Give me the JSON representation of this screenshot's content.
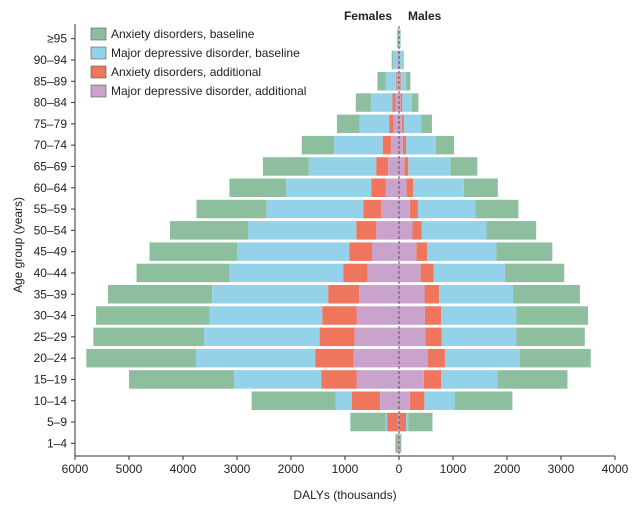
{
  "chart_data": {
    "type": "bar",
    "orientation": "horizontal-population-pyramid",
    "xlabel": "DALYs (thousands)",
    "ylabel": "Age group (years)",
    "xlim": [
      -6000,
      4000
    ],
    "x_ticks": [
      -6000,
      -5000,
      -4000,
      -3000,
      -2000,
      -1000,
      0,
      1000,
      2000,
      3000,
      4000
    ],
    "x_tick_labels": [
      "6000",
      "5000",
      "4000",
      "3000",
      "2000",
      "1000",
      "0",
      "1000",
      "2000",
      "3000",
      "4000"
    ],
    "left_group": "Females",
    "right_group": "Males",
    "legend_position": "top-left",
    "categories": [
      "≥95",
      "90–94",
      "85–89",
      "80–84",
      "75–79",
      "70–74",
      "65–69",
      "60–64",
      "55–59",
      "50–54",
      "45–49",
      "40–44",
      "35–39",
      "30–34",
      "25–29",
      "20–24",
      "15–19",
      "10–14",
      "5–9",
      "1–4"
    ],
    "series": [
      {
        "name": "Anxiety disorders, baseline",
        "color": "#8dbf9f",
        "females": [
          10,
          30,
          150,
          280,
          420,
          600,
          850,
          1050,
          1300,
          1450,
          1620,
          1720,
          1930,
          2100,
          2050,
          2030,
          1950,
          1560,
          650,
          50
        ],
        "males": [
          10,
          20,
          80,
          120,
          200,
          340,
          500,
          630,
          800,
          920,
          1040,
          1100,
          1240,
          1330,
          1270,
          1310,
          1300,
          1070,
          450,
          30
        ]
      },
      {
        "name": "Major depressive disorder, baseline",
        "color": "#93d2e8",
        "females": [
          20,
          80,
          200,
          400,
          550,
          900,
          1250,
          1580,
          1790,
          2000,
          2080,
          2110,
          2150,
          2090,
          2140,
          2210,
          1610,
          300,
          30,
          5
        ],
        "males": [
          15,
          50,
          100,
          180,
          320,
          550,
          780,
          940,
          1060,
          1200,
          1280,
          1320,
          1370,
          1390,
          1380,
          1390,
          1040,
          560,
          40,
          3
        ]
      },
      {
        "name": "Anxiety disorders, additional",
        "color": "#ef755c",
        "females": [
          5,
          10,
          20,
          60,
          80,
          150,
          220,
          260,
          330,
          370,
          420,
          450,
          570,
          640,
          650,
          710,
          660,
          520,
          200,
          10
        ],
        "males": [
          3,
          8,
          15,
          30,
          40,
          60,
          70,
          120,
          150,
          170,
          200,
          240,
          270,
          300,
          300,
          320,
          320,
          270,
          120,
          8
        ]
      },
      {
        "name": "Major depressive disorder, additional",
        "color": "#c9a3cc",
        "females": [
          5,
          15,
          30,
          60,
          100,
          150,
          200,
          250,
          330,
          420,
          500,
          580,
          740,
          780,
          820,
          840,
          780,
          350,
          20,
          3
        ],
        "males": [
          3,
          8,
          15,
          30,
          50,
          70,
          100,
          140,
          200,
          250,
          320,
          400,
          470,
          480,
          490,
          530,
          460,
          200,
          10,
          2
        ]
      }
    ]
  }
}
